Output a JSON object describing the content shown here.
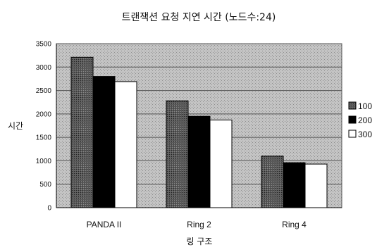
{
  "chart_data": {
    "type": "bar",
    "title": "트랜잭션 요청 지연 시간 (노드수:24)",
    "xlabel": "링 구조",
    "ylabel": "시간",
    "categories": [
      "PANDA II",
      "Ring 2",
      "Ring 4"
    ],
    "series": [
      {
        "name": "100",
        "values": [
          3210,
          2280,
          1100
        ],
        "color": "#4a4a4a",
        "pattern": "stipple"
      },
      {
        "name": "200",
        "values": [
          2800,
          1950,
          960
        ],
        "color": "#000000",
        "pattern": "solid"
      },
      {
        "name": "300",
        "values": [
          2690,
          1870,
          930
        ],
        "color": "#ffffff",
        "pattern": "solid"
      }
    ],
    "ylim": [
      0,
      3500
    ],
    "yticks": [
      0,
      500,
      1000,
      1500,
      2000,
      2500,
      3000,
      3500
    ],
    "grid": true,
    "plot_background": "#b8b8b8",
    "legend_position": "right"
  }
}
